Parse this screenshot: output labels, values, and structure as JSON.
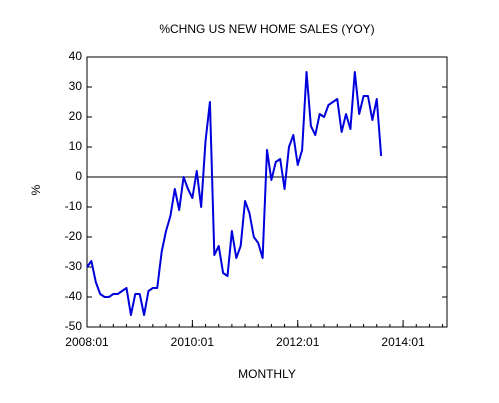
{
  "chart_data": {
    "type": "line",
    "title": "%CHNG US NEW HOME SALES (YOY)",
    "x_label": "MONTHLY",
    "y_label": "%",
    "x": [
      "2008:01",
      "2008:02",
      "2008:03",
      "2008:04",
      "2008:05",
      "2008:06",
      "2008:07",
      "2008:08",
      "2008:09",
      "2008:10",
      "2008:11",
      "2008:12",
      "2009:01",
      "2009:02",
      "2009:03",
      "2009:04",
      "2009:05",
      "2009:06",
      "2009:07",
      "2009:08",
      "2009:09",
      "2009:10",
      "2009:11",
      "2009:12",
      "2010:01",
      "2010:02",
      "2010:03",
      "2010:04",
      "2010:05",
      "2010:06",
      "2010:07",
      "2010:08",
      "2010:09",
      "2010:10",
      "2010:11",
      "2010:12",
      "2011:01",
      "2011:02",
      "2011:03",
      "2011:04",
      "2011:05",
      "2011:06",
      "2011:07",
      "2011:08",
      "2011:09",
      "2011:10",
      "2011:11",
      "2011:12",
      "2012:01",
      "2012:02",
      "2012:03",
      "2012:04",
      "2012:05",
      "2012:06",
      "2012:07",
      "2012:08",
      "2012:09",
      "2012:10",
      "2012:11",
      "2012:12",
      "2013:01",
      "2013:02",
      "2013:03",
      "2013:04",
      "2013:05",
      "2013:06",
      "2013:07",
      "2013:08"
    ],
    "series": [
      {
        "name": "%CHNG US NEW HOME SALES",
        "color": "#0000dd",
        "values": [
          -30,
          -28,
          -35,
          -39,
          -40,
          -40,
          -39,
          -39,
          -38,
          -37,
          -46,
          -39,
          -39,
          -46,
          -38,
          -37,
          -37,
          -25,
          -18,
          -13,
          -4,
          -11,
          0,
          -4,
          -7,
          2,
          -10,
          12,
          25,
          -26,
          -23,
          -32,
          -33,
          -18,
          -27,
          -23,
          -8,
          -12,
          -20,
          -22,
          -27,
          9,
          -1,
          5,
          6,
          -4,
          10,
          14,
          4,
          9,
          35,
          17,
          14,
          21,
          20,
          24,
          25,
          26,
          15,
          21,
          16,
          35,
          21,
          27,
          27,
          19,
          26,
          7
        ]
      }
    ],
    "xlim": [
      "2008:01",
      "2014:11"
    ],
    "xticks": [
      "2008:01",
      "2010:01",
      "2012:01",
      "2014:01"
    ],
    "ylim": [
      -50,
      40
    ],
    "yticks": [
      -50,
      -40,
      -30,
      -20,
      -10,
      0,
      10,
      20,
      30,
      40
    ],
    "reference_line": 0,
    "grid": false
  }
}
